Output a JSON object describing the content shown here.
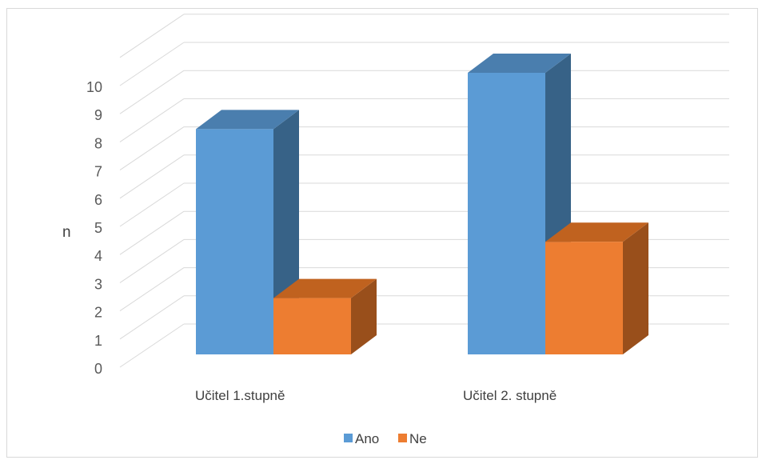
{
  "chart_data": {
    "type": "bar",
    "categories": [
      "Učitel 1.stupně",
      "Učitel 2. stupně"
    ],
    "series": [
      {
        "name": "Ano",
        "values": [
          8,
          10
        ]
      },
      {
        "name": "Ne",
        "values": [
          2,
          4
        ]
      }
    ],
    "ylabel": "n",
    "ylim": [
      0,
      10
    ],
    "yticks": [
      "0",
      "1",
      "2",
      "3",
      "4",
      "5",
      "6",
      "7",
      "8",
      "9",
      "10"
    ],
    "grid": true,
    "legend": "bottom",
    "style": "3d-column",
    "colors": {
      "Ano": {
        "front": "#5b9bd5",
        "side": "#376287",
        "top": "#4a7eae"
      },
      "Ne": {
        "front": "#ed7d31",
        "side": "#994f1b",
        "top": "#c0621f"
      },
      "grid": "#d9d9d9",
      "frame": "#d9d9d9"
    }
  }
}
